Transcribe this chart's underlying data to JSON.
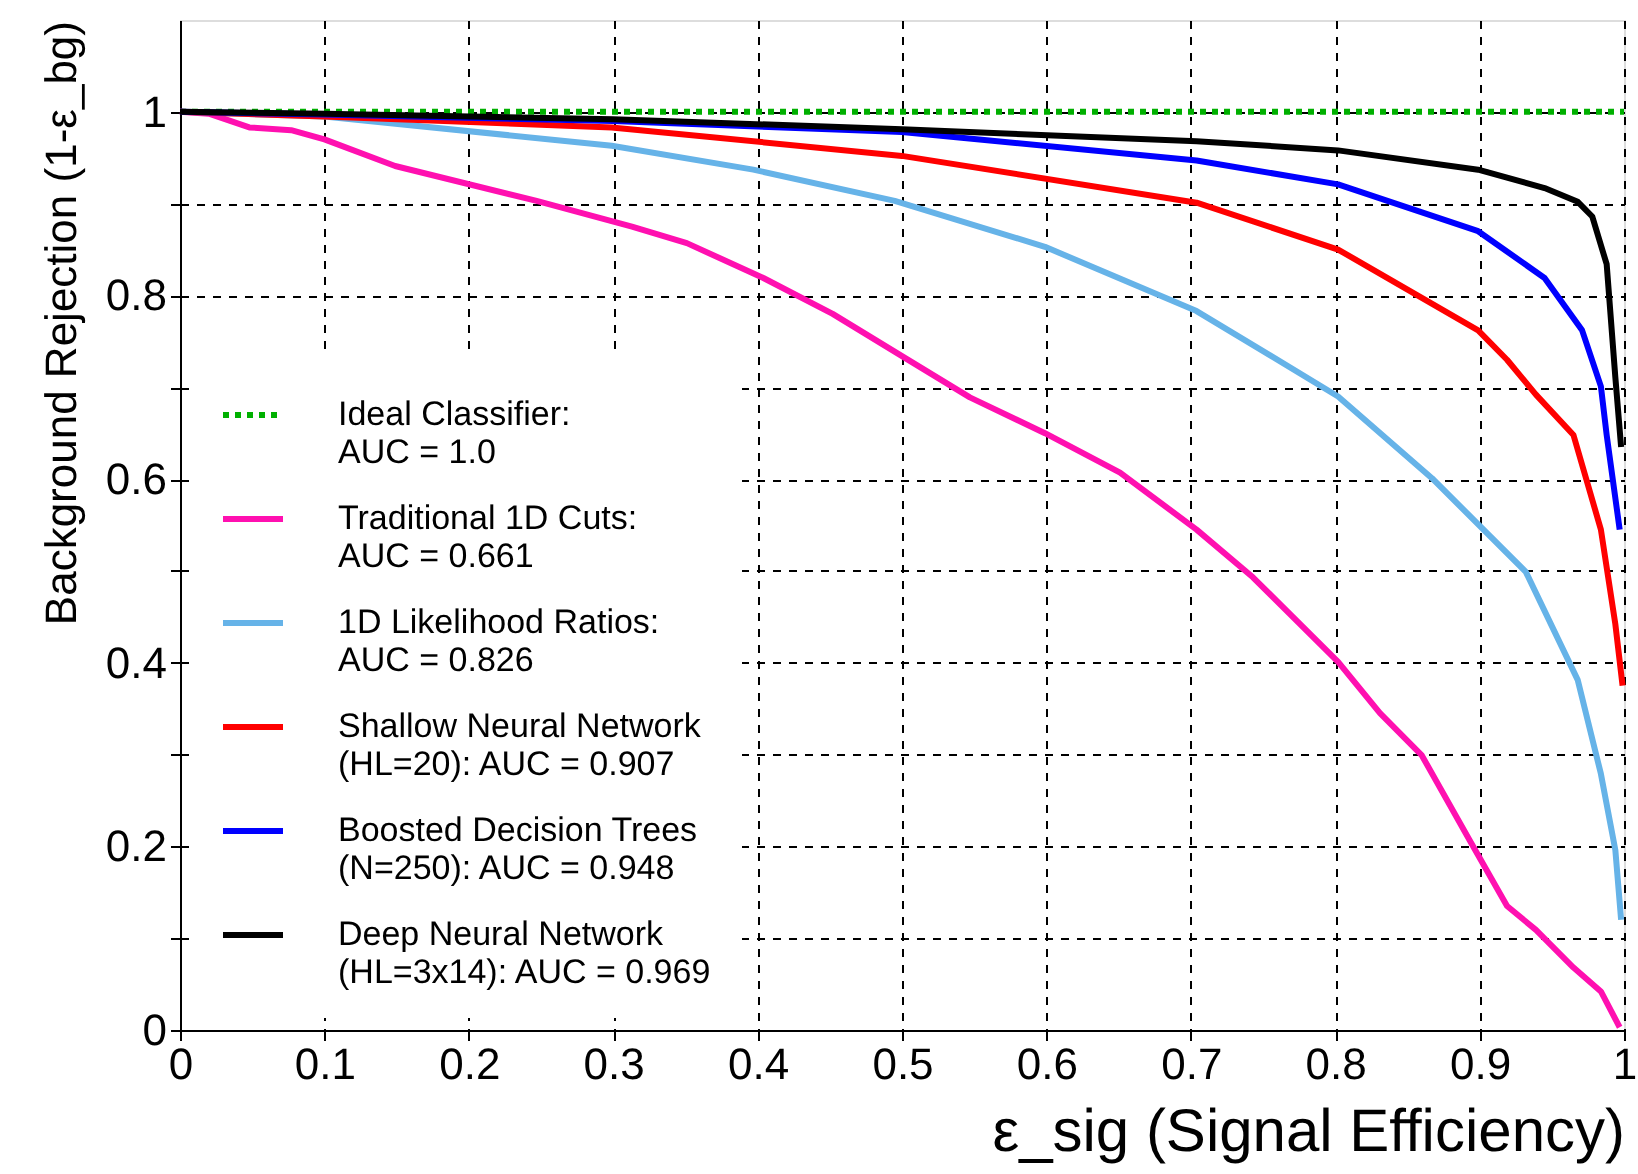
{
  "chart_data": {
    "type": "line",
    "xlabel": "ε_sig (Signal Efficiency)",
    "ylabel": "Background Rejection (1-ε_bg)",
    "xlim": [
      0,
      1
    ],
    "ylim": [
      0,
      1.1
    ],
    "xticks": [
      0,
      0.1,
      0.2,
      0.3,
      0.4,
      0.5,
      0.6,
      0.7,
      0.8,
      0.9,
      1
    ],
    "yticks": [
      0,
      {
        "value": 0.1,
        "label": null
      },
      0.2,
      {
        "value": 0.3,
        "label": null
      },
      0.4,
      {
        "value": 0.5,
        "label": null
      },
      0.6,
      {
        "value": 0.7,
        "label": null
      },
      0.8,
      {
        "value": 0.9,
        "label": null
      },
      1
    ],
    "grid": true,
    "legend": "bottom left",
    "line_style": "solid",
    "marker": "none",
    "series": [
      {
        "name": "Ideal Classifier:\n AUC = 1.0",
        "color": "#00b000",
        "line_style": "dotted",
        "x": [
          0,
          1
        ],
        "values": [
          1,
          1
        ]
      },
      {
        "name": "Traditional 1D Cuts:\n AUC = 0.661",
        "color": "#ff10b0",
        "x": [
          0,
          0.02,
          0.048,
          0.077,
          0.1,
          0.149,
          0.247,
          0.313,
          0.351,
          0.404,
          0.452,
          0.502,
          0.547,
          0.599,
          0.651,
          0.704,
          0.743,
          0.802,
          0.831,
          0.86,
          0.893,
          0.919,
          0.939,
          0.965,
          0.984,
          0.997
        ],
        "values": [
          1,
          0.998,
          0.983,
          0.98,
          0.97,
          0.941,
          0.903,
          0.875,
          0.857,
          0.819,
          0.78,
          0.732,
          0.689,
          0.65,
          0.607,
          0.545,
          0.493,
          0.401,
          0.345,
          0.299,
          0.207,
          0.135,
          0.109,
          0.068,
          0.042,
          0.003
        ]
      },
      {
        "name": "1D Likelihood Ratios:\n AUC = 0.826",
        "color": "#66b3e8",
        "x": [
          0,
          0.1,
          0.299,
          0.397,
          0.495,
          0.599,
          0.704,
          0.802,
          0.867,
          0.932,
          0.968,
          0.984,
          0.994,
          0.998
        ],
        "values": [
          1,
          0.995,
          0.963,
          0.937,
          0.903,
          0.853,
          0.783,
          0.69,
          0.601,
          0.499,
          0.381,
          0.279,
          0.196,
          0.12
        ]
      },
      {
        "name": "Shallow Neural Network\n (HL=20): AUC = 0.907",
        "color": "#ff0000",
        "x": [
          0,
          0.1,
          0.299,
          0.5,
          0.704,
          0.802,
          0.899,
          0.919,
          0.939,
          0.965,
          0.984,
          0.994,
          0.999
        ],
        "values": [
          1,
          0.995,
          0.983,
          0.952,
          0.901,
          0.85,
          0.762,
          0.73,
          0.692,
          0.648,
          0.545,
          0.442,
          0.375
        ]
      },
      {
        "name": "Boosted Decision Trees\n (N=250): AUC = 0.948",
        "color": "#0000ff",
        "x": [
          0,
          0.1,
          0.3,
          0.5,
          0.704,
          0.802,
          0.899,
          0.945,
          0.971,
          0.984,
          0.988,
          0.997
        ],
        "values": [
          1,
          0.997,
          0.99,
          0.978,
          0.947,
          0.921,
          0.87,
          0.819,
          0.762,
          0.701,
          0.648,
          0.545
        ]
      },
      {
        "name": "Deep Neural Network\n (HL=3x14): AUC = 0.969",
        "color": "#000000",
        "x": [
          0,
          0.1,
          0.3,
          0.5,
          0.704,
          0.802,
          0.899,
          0.945,
          0.968,
          0.978,
          0.988,
          0.994,
          0.998
        ],
        "values": [
          1,
          0.998,
          0.992,
          0.981,
          0.968,
          0.958,
          0.937,
          0.917,
          0.902,
          0.886,
          0.834,
          0.711,
          0.635
        ]
      }
    ]
  }
}
